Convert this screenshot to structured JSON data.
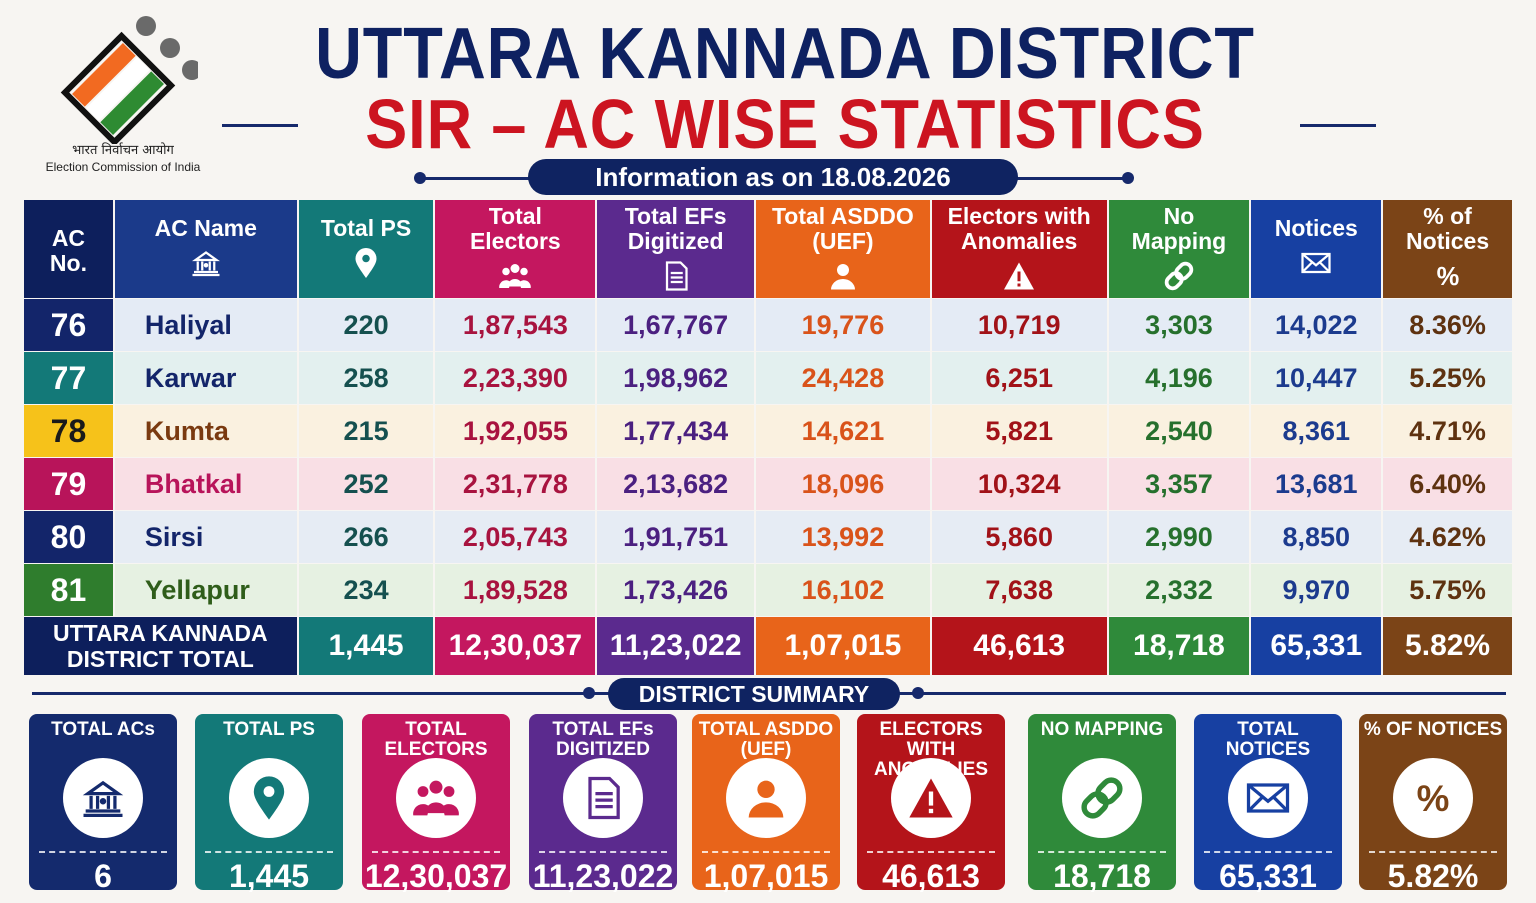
{
  "header": {
    "logo_hindi": "भारत निर्वाचन आयोग",
    "logo_english": "Election Commission of India",
    "title_line1": "UTTARA KANNADA DISTRICT",
    "title_line2": "SIR – AC WISE STATISTICS",
    "info": "Information as on 18.08.2026"
  },
  "colors": {
    "navy": "#0e2161",
    "red": "#cc1420",
    "teal": "#137978",
    "magenta": "#c4175f",
    "purple": "#5b2a8e",
    "orange": "#e8641a",
    "crimson": "#b4141a",
    "green": "#2f8a3a",
    "blue": "#1740a2",
    "brown": "#7b4417"
  },
  "table": {
    "headers": [
      {
        "label": "AC\nNo.",
        "icon": ""
      },
      {
        "label": "AC Name",
        "icon": "building-icon"
      },
      {
        "label": "Total PS",
        "icon": "location-pin-icon"
      },
      {
        "label": "Total\nElectors",
        "icon": "people-icon"
      },
      {
        "label": "Total EFs\nDigitized",
        "icon": "document-icon"
      },
      {
        "label": "Total ASDDO\n(UEF)",
        "icon": "person-icon"
      },
      {
        "label": "Electors with\nAnomalies",
        "icon": "warning-icon"
      },
      {
        "label": "No\nMapping",
        "icon": "link-icon"
      },
      {
        "label": "Notices",
        "icon": "envelope-icon"
      },
      {
        "label": "% of\nNotices",
        "icon": "percent-icon"
      }
    ],
    "rows": [
      {
        "ac_no": "76",
        "name": "Haliyal",
        "ps": "220",
        "electors": "1,87,543",
        "efs": "1,67,767",
        "asddo": "19,776",
        "anomalies": "10,719",
        "no_mapping": "3,303",
        "notices": "14,022",
        "pct": "8.36%",
        "no_color": "#13256a",
        "name_color": "#13256a",
        "tint": "#e4ebf5"
      },
      {
        "ac_no": "77",
        "name": "Karwar",
        "ps": "258",
        "electors": "2,23,390",
        "efs": "1,98,962",
        "asddo": "24,428",
        "anomalies": "6,251",
        "no_mapping": "4,196",
        "notices": "10,447",
        "pct": "5.25%",
        "no_color": "#137978",
        "name_color": "#13256a",
        "tint": "#e3f0ef"
      },
      {
        "ac_no": "78",
        "name": "Kumta",
        "ps": "215",
        "electors": "1,92,055",
        "efs": "1,77,434",
        "asddo": "14,621",
        "anomalies": "5,821",
        "no_mapping": "2,540",
        "notices": "8,361",
        "pct": "4.71%",
        "no_color": "#f6c21a",
        "name_color": "#7a3a10",
        "tint": "#faf1e0"
      },
      {
        "ac_no": "79",
        "name": "Bhatkal",
        "ps": "252",
        "electors": "2,31,778",
        "efs": "2,13,682",
        "asddo": "18,096",
        "anomalies": "10,324",
        "no_mapping": "3,357",
        "notices": "13,681",
        "pct": "6.40%",
        "no_color": "#b8145a",
        "name_color": "#b8145a",
        "tint": "#f9dfe5"
      },
      {
        "ac_no": "80",
        "name": "Sirsi",
        "ps": "266",
        "electors": "2,05,743",
        "efs": "1,91,751",
        "asddo": "13,992",
        "anomalies": "5,860",
        "no_mapping": "2,990",
        "notices": "8,850",
        "pct": "4.62%",
        "no_color": "#13256a",
        "name_color": "#13256a",
        "tint": "#e6ecf4"
      },
      {
        "ac_no": "81",
        "name": "Yellapur",
        "ps": "234",
        "electors": "1,89,528",
        "efs": "1,73,426",
        "asddo": "16,102",
        "anomalies": "7,638",
        "no_mapping": "2,332",
        "notices": "9,970",
        "pct": "5.75%",
        "no_color": "#2f7d2d",
        "name_color": "#2f5d1a",
        "tint": "#e6f1e2"
      }
    ],
    "total": {
      "label": "UTTARA KANNADA\nDISTRICT TOTAL",
      "ps": "1,445",
      "electors": "12,30,037",
      "efs": "11,23,022",
      "asddo": "1,07,015",
      "anomalies": "46,613",
      "no_mapping": "18,718",
      "notices": "65,331",
      "pct": "5.82%"
    }
  },
  "summary": {
    "title": "DISTRICT SUMMARY",
    "cards": [
      {
        "title": "TOTAL ACs",
        "value": "6",
        "icon": "building-icon",
        "color": "#142a6d"
      },
      {
        "title": "TOTAL PS",
        "value": "1,445",
        "icon": "location-pin-icon",
        "color": "#137978"
      },
      {
        "title": "TOTAL ELECTORS",
        "value": "12,30,037",
        "icon": "people-icon",
        "color": "#c4175f"
      },
      {
        "title": "TOTAL EFs\nDIGITIZED",
        "value": "11,23,022",
        "icon": "document-icon",
        "color": "#5b2a8e"
      },
      {
        "title": "TOTAL ASDDO\n(UEF)",
        "value": "1,07,015",
        "icon": "person-icon",
        "color": "#e8641a"
      },
      {
        "title": "ELECTORS WITH\nANOMALIES",
        "value": "46,613",
        "icon": "warning-icon",
        "color": "#b4141a"
      },
      {
        "title": "NO MAPPING",
        "value": "18,718",
        "icon": "link-icon",
        "color": "#2f8a3a"
      },
      {
        "title": "TOTAL NOTICES",
        "value": "65,331",
        "icon": "envelope-icon",
        "color": "#1740a2"
      },
      {
        "title": "% OF NOTICES",
        "value": "5.82%",
        "icon": "percent-icon",
        "color": "#7b4417"
      }
    ]
  }
}
